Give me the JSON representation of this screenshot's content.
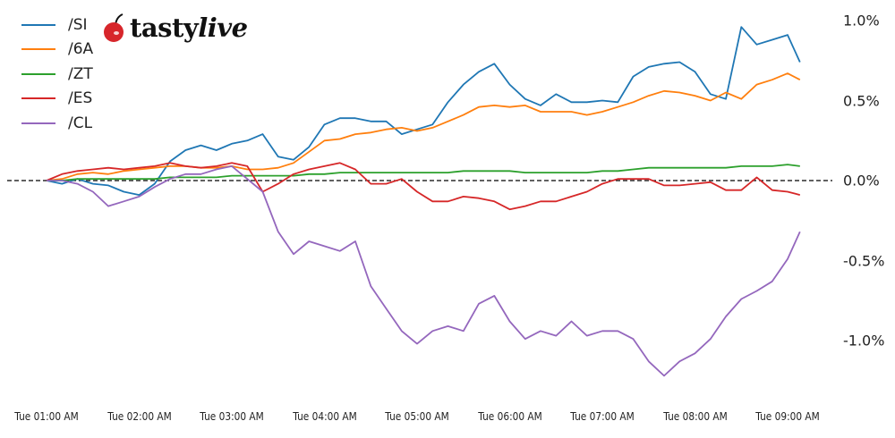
{
  "logo": {
    "text_part1": "tasty",
    "text_part2": "live",
    "cherry_color": "#d7262b"
  },
  "chart_data": {
    "type": "line",
    "title": "",
    "xlabel": "",
    "ylabel": "",
    "y_unit": "%",
    "ylim": [
      -1.35,
      1.05
    ],
    "grid": false,
    "zero_line": "dashed",
    "legend_position": "top-left",
    "y_axis_side": "right",
    "yticks": [
      1.0,
      0.5,
      0.0,
      -0.5,
      -1.0
    ],
    "ytick_labels": [
      "1.0%",
      "0.5%",
      "0.0%",
      "-0.5%",
      "-1.0%"
    ],
    "xtick_labels": [
      "Tue 01:00 AM",
      "Tue 02:00 AM",
      "Tue 03:00 AM",
      "Tue 04:00 AM",
      "Tue 05:00 AM",
      "Tue 06:00 AM",
      "Tue 07:00 AM",
      "Tue 08:00 AM",
      "Tue 09:00 AM"
    ],
    "x": [
      "01:00",
      "01:10",
      "01:20",
      "01:30",
      "01:40",
      "01:50",
      "02:00",
      "02:10",
      "02:20",
      "02:30",
      "02:40",
      "02:50",
      "03:00",
      "03:10",
      "03:20",
      "03:30",
      "03:40",
      "03:50",
      "04:00",
      "04:10",
      "04:20",
      "04:30",
      "04:40",
      "04:50",
      "05:00",
      "05:10",
      "05:20",
      "05:30",
      "05:40",
      "05:50",
      "06:00",
      "06:10",
      "06:20",
      "06:30",
      "06:40",
      "06:50",
      "07:00",
      "07:10",
      "07:20",
      "07:30",
      "07:40",
      "07:50",
      "08:00",
      "08:10",
      "08:20",
      "08:30",
      "08:40",
      "08:50",
      "09:00",
      "09:08"
    ],
    "series": [
      {
        "name": "/SI",
        "color": "#1f77b4",
        "values": [
          0,
          -0.02,
          0.01,
          -0.02,
          -0.03,
          -0.07,
          -0.09,
          -0.02,
          0.12,
          0.19,
          0.22,
          0.19,
          0.23,
          0.25,
          0.29,
          0.15,
          0.13,
          0.21,
          0.35,
          0.39,
          0.39,
          0.37,
          0.37,
          0.29,
          0.32,
          0.35,
          0.49,
          0.6,
          0.68,
          0.73,
          0.6,
          0.51,
          0.47,
          0.54,
          0.49,
          0.49,
          0.5,
          0.49,
          0.65,
          0.71,
          0.73,
          0.74,
          0.68,
          0.54,
          0.51,
          0.96,
          0.85,
          0.88,
          0.91,
          0.74
        ]
      },
      {
        "name": "/6A",
        "color": "#ff7f0e",
        "values": [
          0,
          0.01,
          0.04,
          0.05,
          0.04,
          0.06,
          0.07,
          0.08,
          0.09,
          0.09,
          0.08,
          0.08,
          0.09,
          0.07,
          0.07,
          0.08,
          0.11,
          0.18,
          0.25,
          0.26,
          0.29,
          0.3,
          0.32,
          0.33,
          0.31,
          0.33,
          0.37,
          0.41,
          0.46,
          0.47,
          0.46,
          0.47,
          0.43,
          0.43,
          0.43,
          0.41,
          0.43,
          0.46,
          0.49,
          0.53,
          0.56,
          0.55,
          0.53,
          0.5,
          0.55,
          0.51,
          0.6,
          0.63,
          0.67,
          0.63
        ]
      },
      {
        "name": "/ZT",
        "color": "#2ca02c",
        "values": [
          0,
          0,
          0.01,
          0.01,
          0.01,
          0.01,
          0.01,
          0.01,
          0.02,
          0.02,
          0.02,
          0.02,
          0.03,
          0.03,
          0.03,
          0.03,
          0.03,
          0.04,
          0.04,
          0.05,
          0.05,
          0.05,
          0.05,
          0.05,
          0.05,
          0.05,
          0.05,
          0.06,
          0.06,
          0.06,
          0.06,
          0.05,
          0.05,
          0.05,
          0.05,
          0.05,
          0.06,
          0.06,
          0.07,
          0.08,
          0.08,
          0.08,
          0.08,
          0.08,
          0.08,
          0.09,
          0.09,
          0.09,
          0.1,
          0.09
        ]
      },
      {
        "name": "/ES",
        "color": "#d62728",
        "values": [
          0,
          0.04,
          0.06,
          0.07,
          0.08,
          0.07,
          0.08,
          0.09,
          0.11,
          0.09,
          0.08,
          0.09,
          0.11,
          0.09,
          -0.07,
          -0.02,
          0.04,
          0.07,
          0.09,
          0.11,
          0.07,
          -0.02,
          -0.02,
          0.01,
          -0.07,
          -0.13,
          -0.13,
          -0.1,
          -0.11,
          -0.13,
          -0.18,
          -0.16,
          -0.13,
          -0.13,
          -0.1,
          -0.07,
          -0.02,
          0.01,
          0.01,
          0.01,
          -0.03,
          -0.03,
          -0.02,
          -0.01,
          -0.06,
          -0.06,
          0.02,
          -0.06,
          -0.07,
          -0.09
        ]
      },
      {
        "name": "/CL",
        "color": "#9467bd",
        "values": [
          0,
          0,
          -0.02,
          -0.07,
          -0.16,
          -0.13,
          -0.1,
          -0.04,
          0.01,
          0.04,
          0.04,
          0.07,
          0.09,
          0.01,
          -0.07,
          -0.32,
          -0.46,
          -0.38,
          -0.41,
          -0.44,
          -0.38,
          -0.66,
          -0.8,
          -0.94,
          -1.02,
          -0.94,
          -0.91,
          -0.94,
          -0.77,
          -0.72,
          -0.88,
          -0.99,
          -0.94,
          -0.97,
          -0.88,
          -0.97,
          -0.94,
          -0.94,
          -0.99,
          -1.13,
          -1.22,
          -1.13,
          -1.08,
          -0.99,
          -0.85,
          -0.74,
          -0.69,
          -0.63,
          -0.49,
          -0.32
        ]
      }
    ]
  }
}
